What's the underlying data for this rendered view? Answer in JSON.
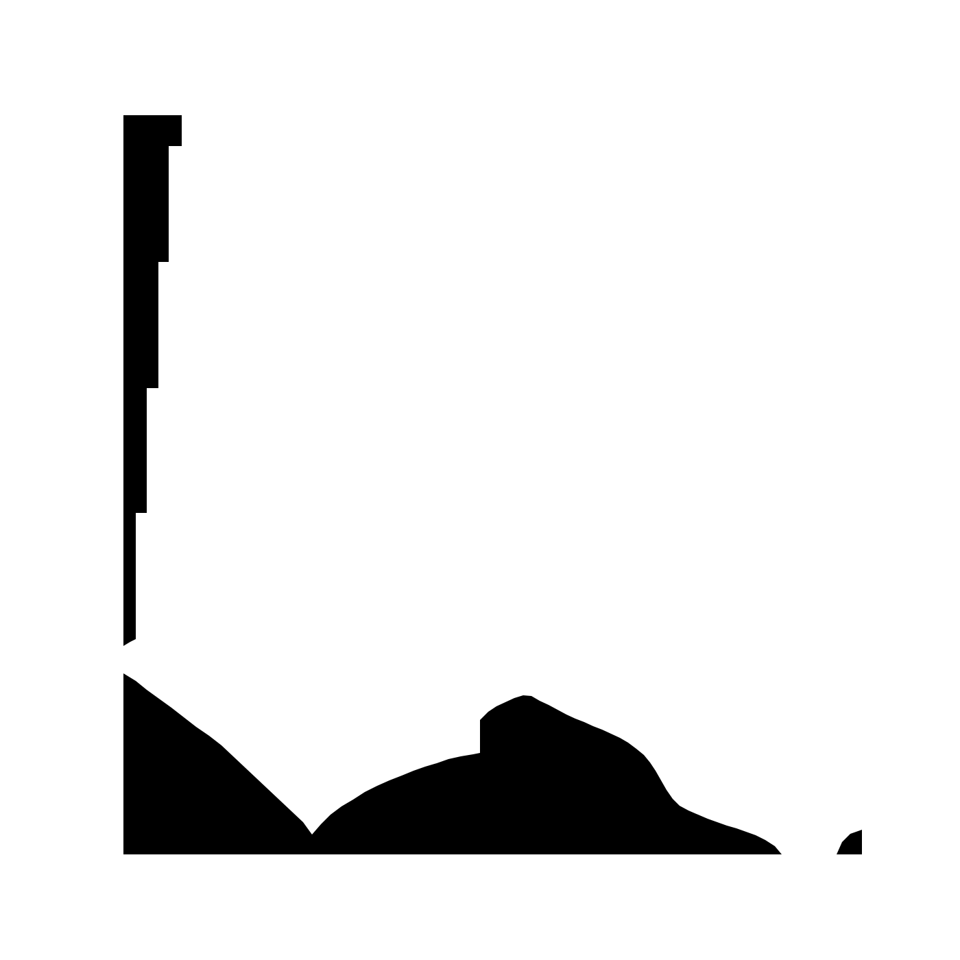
{
  "colors": {
    "background": "#ffffff",
    "fill": "#000000"
  }
}
